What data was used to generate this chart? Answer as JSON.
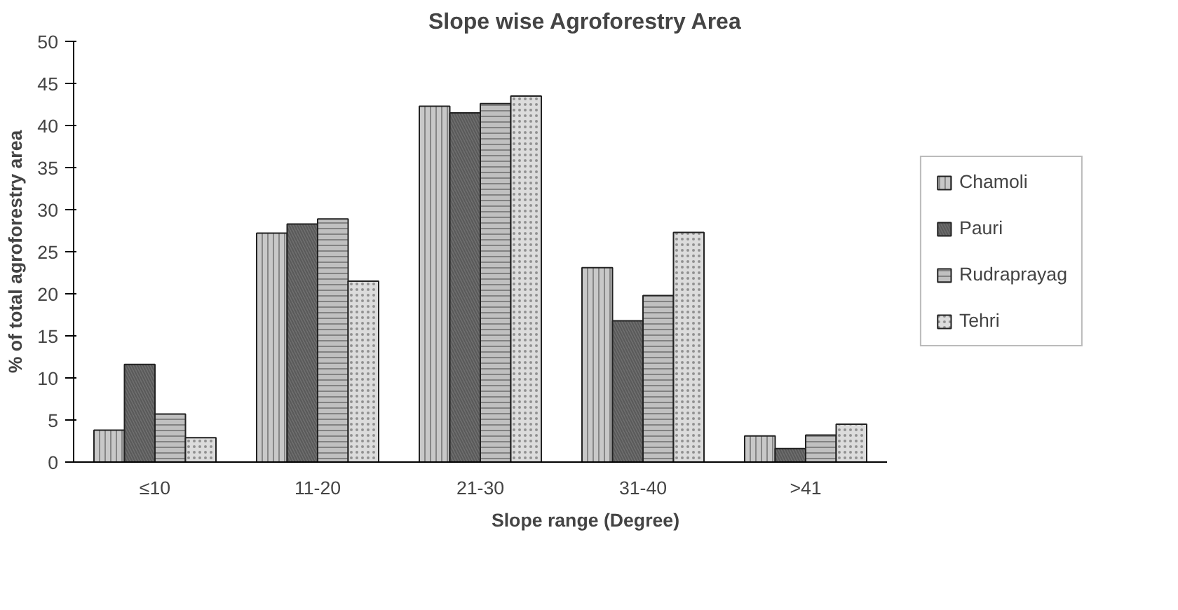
{
  "chart_data": {
    "type": "bar",
    "title": "Slope wise Agroforestry Area",
    "xlabel": "Slope range (Degree)",
    "ylabel": "% of total agroforestry area",
    "categories": [
      "≤10",
      "11-20",
      "21-30",
      "31-40",
      ">41"
    ],
    "series": [
      {
        "name": "Chamoli",
        "color": "#c8c8c8",
        "values": [
          3.8,
          27.2,
          42.3,
          23.1,
          3.1
        ]
      },
      {
        "name": "Pauri",
        "color": "#6e6e6e",
        "values": [
          11.6,
          28.3,
          41.5,
          16.8,
          1.6
        ]
      },
      {
        "name": "Rudraprayag",
        "color": "#c0c0c0",
        "values": [
          5.7,
          28.9,
          42.6,
          19.8,
          3.2
        ]
      },
      {
        "name": "Tehri",
        "color": "#dcdcdc",
        "values": [
          2.9,
          21.5,
          43.5,
          27.3,
          4.5
        ]
      }
    ],
    "ylim": [
      0,
      50
    ],
    "yticks": [
      0,
      5,
      10,
      15,
      20,
      25,
      30,
      35,
      40,
      45,
      50
    ],
    "grid": false,
    "legend": "right"
  }
}
